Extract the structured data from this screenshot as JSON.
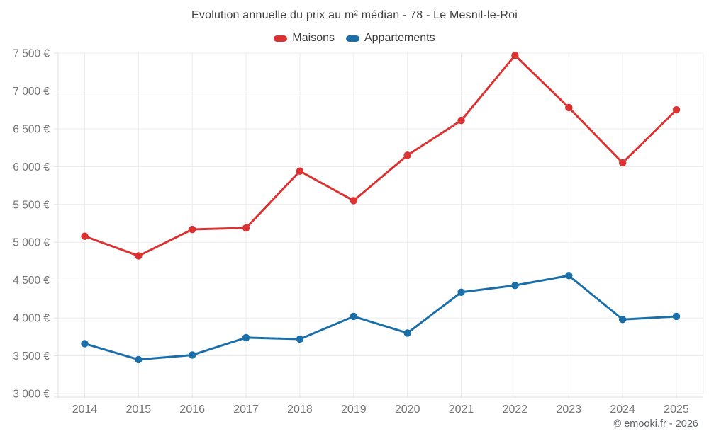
{
  "header": {
    "title": "Evolution annuelle du prix au m² médian - 78 - Le Mesnil-le-Roi"
  },
  "footer": {
    "credit": "© emooki.fr - 2026"
  },
  "colors": {
    "maisons": "#dc3232",
    "appartements": "#1a6fa8",
    "grid": "#ececec",
    "axis": "#e2e2e2",
    "tick_text": "#757575",
    "title_text": "#3d3d3d",
    "footer_text": "#5f6368"
  },
  "chart_data": {
    "type": "line",
    "title": "Evolution annuelle du prix au m² médian - 78 - Le Mesnil-le-Roi",
    "categories": [
      "2014",
      "2015",
      "2016",
      "2017",
      "2018",
      "2019",
      "2020",
      "2021",
      "2022",
      "2023",
      "2024",
      "2025"
    ],
    "series": [
      {
        "name": "Maisons",
        "color": "#dc3232",
        "values": [
          5080,
          4820,
          5170,
          5190,
          5940,
          5550,
          6150,
          6610,
          7470,
          6780,
          6050,
          6750
        ]
      },
      {
        "name": "Appartements",
        "color": "#1a6fa8",
        "values": [
          3660,
          3450,
          3510,
          3740,
          3720,
          4020,
          3800,
          4340,
          4430,
          4560,
          3980,
          4020
        ]
      }
    ],
    "xlabel": "",
    "ylabel": "",
    "ylim": [
      3000,
      7500
    ],
    "ytick_step": 500,
    "ytick_labels": [
      "3 000 €",
      "3 500 €",
      "4 000 €",
      "4 500 €",
      "5 000 €",
      "5 500 €",
      "6 000 €",
      "6 500 €",
      "7 000 €",
      "7 500 €"
    ],
    "grid": true,
    "legend_position": "top",
    "value_suffix": " €"
  }
}
